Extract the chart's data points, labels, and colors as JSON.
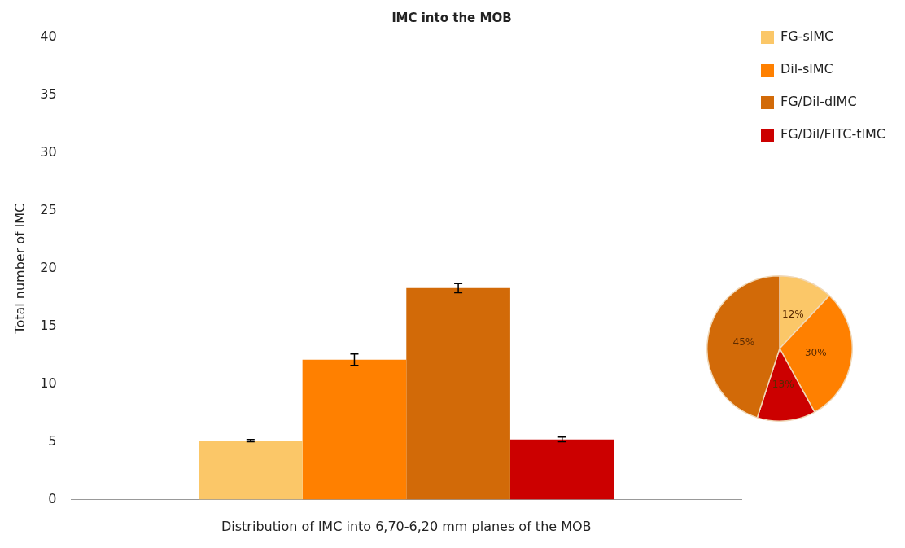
{
  "chart_data": [
    {
      "type": "bar",
      "title": "lMC into the MOB",
      "xlabel": "Distribution of lMC into 6,70-6,20 mm planes of the MOB",
      "ylabel": "Total number of lMC",
      "categories": [
        null
      ],
      "series": [
        {
          "name": "FG-slMC",
          "color": "#fbc768",
          "values": [
            5.1
          ],
          "errors": [
            0.1
          ]
        },
        {
          "name": "Dil-slMC",
          "color": "#ff8000",
          "values": [
            12.1
          ],
          "errors": [
            0.5
          ]
        },
        {
          "name": "FG/Dil-dlMC",
          "color": "#d26a08",
          "values": [
            18.3
          ],
          "errors": [
            0.4
          ]
        },
        {
          "name": "FG/Dil/FITC-tlMC",
          "color": "#cc0000",
          "values": [
            5.2
          ],
          "errors": [
            0.2
          ]
        }
      ],
      "ylim": [
        0,
        40
      ],
      "yticks": [
        0,
        5,
        10,
        15,
        20,
        25,
        30,
        35,
        40
      ],
      "grid": false,
      "legend": "top right"
    },
    {
      "type": "pie",
      "categories": [
        null,
        null,
        null,
        null
      ],
      "values": [
        12,
        30,
        13,
        45
      ],
      "colors": [
        "#fbc768",
        "#ff8000",
        "#cc0000",
        "#d26a08"
      ],
      "value_labels": [
        "12%",
        "30%",
        "13%",
        "45%"
      ],
      "legend": false
    }
  ]
}
